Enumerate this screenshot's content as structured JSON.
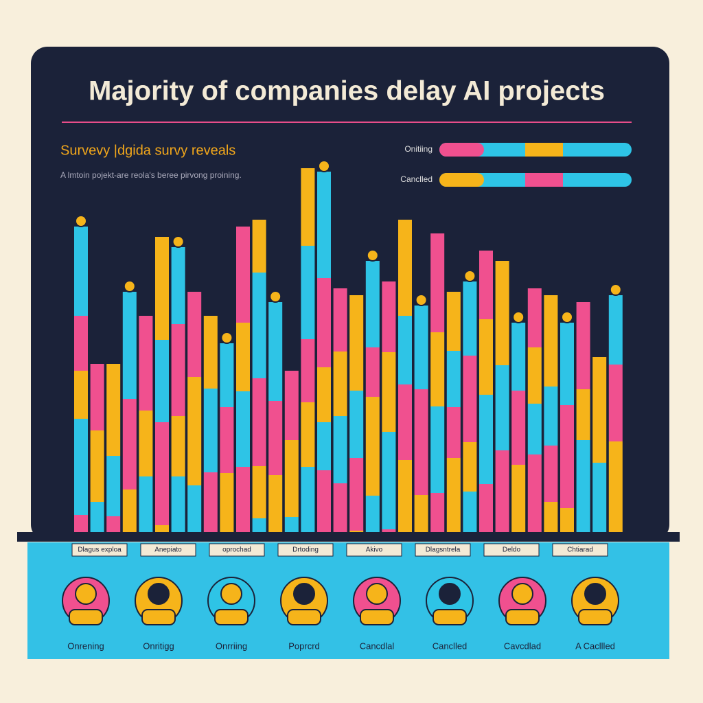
{
  "header": {
    "title": "Majority of companies delay AI projects",
    "subtitle": "Survevy |dgida survy reveals",
    "description": "A lmtoin pojekt-are reola's beree pirvong proining."
  },
  "legend": [
    "Onitiing",
    "Canclled"
  ],
  "categories": [
    "Dlagus exploa",
    "Anepiato",
    "oprochad",
    "Drtoding",
    "Akivo",
    "Dlagsntrela",
    "Deldo",
    "Chtiarad"
  ],
  "people": [
    "Onrening",
    "Onritigg",
    "Onrriing",
    "Poprcrd",
    "Cancdlal",
    "Canclled",
    "Cavcdlad",
    "A Cacllled"
  ]
}
